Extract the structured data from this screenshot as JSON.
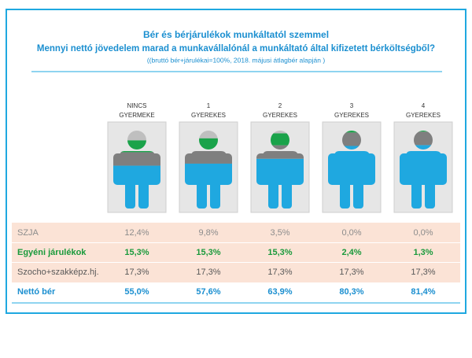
{
  "title": "Bér és bérjárulékok munkáltatól szemmel",
  "subtitle": "Mennyi nettó jövedelem marad a munkavállalónál a munkáltató által kifizetett bérköltségből?",
  "note": "((bruttó bér+járulékai=100%, 2018. májusi átlagbér alapján )",
  "columns": [
    [
      "NINCS",
      "GYERMEKE"
    ],
    [
      "1",
      "GYEREKES"
    ],
    [
      "2",
      "GYEREKES"
    ],
    [
      "3",
      "GYEREKES"
    ],
    [
      "4",
      "GYEREKES"
    ]
  ],
  "rows": [
    {
      "label": "SZJA",
      "color": "#bfbfbf",
      "text_color": "#8c8c8c",
      "values": [
        12.4,
        9.8,
        3.5,
        0.0,
        0.0
      ],
      "value_labels": [
        "12,4%",
        "9,8%",
        "3,5%",
        "0,0%",
        "0,0%"
      ]
    },
    {
      "label": "Egyéni járulékok",
      "color": "#1aa34a",
      "text_color": "#1a9a3c",
      "values": [
        15.3,
        15.3,
        15.3,
        2.4,
        1.3
      ],
      "value_labels": [
        "15,3%",
        "15,3%",
        "15,3%",
        "2,4%",
        "1,3%"
      ]
    },
    {
      "label": "Szocho+szakképz.hj.",
      "color": "#7f7f7f",
      "text_color": "#595959",
      "values": [
        17.3,
        17.3,
        17.3,
        17.3,
        17.3
      ],
      "value_labels": [
        "17,3%",
        "17,3%",
        "17,3%",
        "17,3%",
        "17,3%"
      ]
    },
    {
      "label": "Nettó bér",
      "color": "#1fa8e0",
      "text_color": "#1b8fd0",
      "values": [
        55.0,
        57.6,
        63.9,
        80.3,
        81.4
      ],
      "value_labels": [
        "55,0%",
        "57,6%",
        "63,9%",
        "80,3%",
        "81,4%"
      ]
    }
  ]
}
